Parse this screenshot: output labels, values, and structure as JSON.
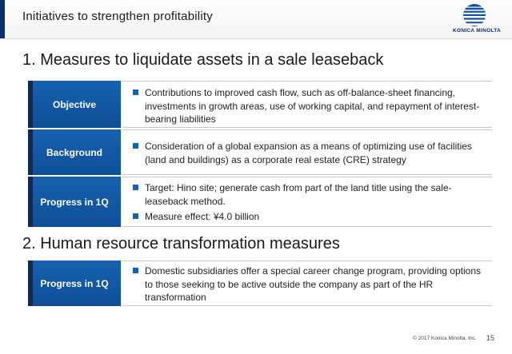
{
  "header": {
    "title": "Initiatives to strengthen profitability",
    "logo_text": "KONICA MINOLTA",
    "accent_color": "#0d2d6c"
  },
  "sections": [
    {
      "heading": "1. Measures to liquidate assets in a sale leaseback",
      "rows": [
        {
          "label": "Objective",
          "bullets": [
            "Contributions to improved cash flow, such as off-balance-sheet financing, investments in growth areas, use of working capital, and repayment of interest-bearing liabilities"
          ]
        },
        {
          "label": "Background",
          "bullets": [
            "Consideration of a global expansion as a means of optimizing use of facilities (land and buildings) as a corporate real estate (CRE) strategy"
          ]
        },
        {
          "label": "Progress in 1Q",
          "bullets": [
            "Target: Hino site; generate cash from part of the land title using the sale-leaseback method.",
            "Measure effect: ¥4.0 billion"
          ]
        }
      ]
    },
    {
      "heading": "2. Human resource transformation measures",
      "rows": [
        {
          "label": "Progress in 1Q",
          "bullets": [
            "Domestic subsidiaries offer a special career change program, providing options to those seeking to be active outside the company as part of the HR transformation"
          ]
        }
      ]
    }
  ],
  "footer": {
    "copyright": "© 2017 Konica Minolta, Inc.",
    "page_number": "15"
  },
  "colors": {
    "label_blue": "#1762b0",
    "label_dark": "#0a2b5c",
    "bullet_blue": "#1762b0"
  }
}
